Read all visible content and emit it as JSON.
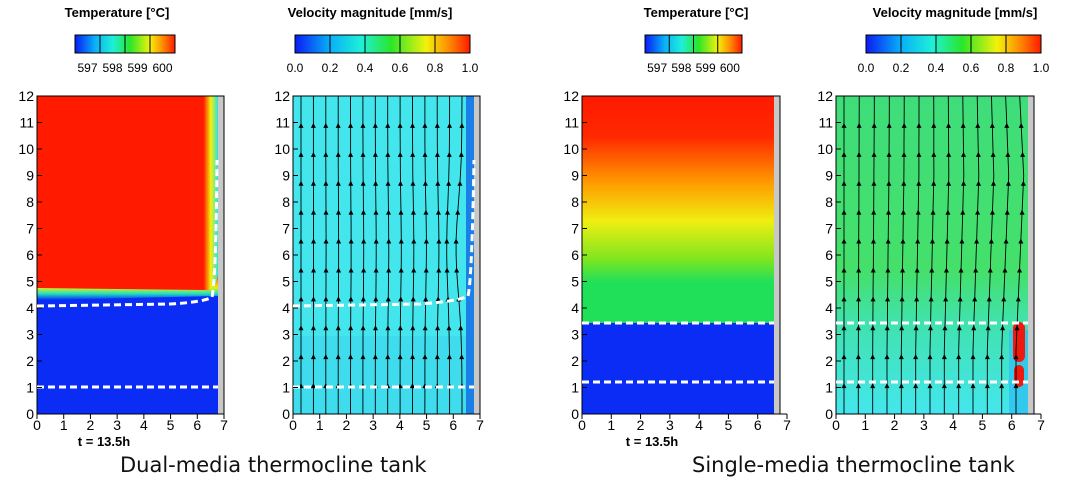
{
  "captions": {
    "dual": "Dual-media thermocline tank",
    "single": "Single-media thermocline tank"
  },
  "panels": [
    {
      "id": "dual-temperature",
      "colorbar_title": "Temperature [°C]",
      "colorbar_ticks": [
        "597",
        "598",
        "599",
        "600"
      ],
      "time_label": "t = 13.5h",
      "x_ticks": [
        "0",
        "1",
        "2",
        "3",
        "4",
        "5",
        "6",
        "7"
      ],
      "y_ticks": [
        "0",
        "1",
        "2",
        "3",
        "4",
        "5",
        "6",
        "7",
        "8",
        "9",
        "10",
        "11",
        "12"
      ],
      "xlim": [
        0,
        7
      ],
      "ylim": [
        0,
        12
      ],
      "dashed_lines_y": [
        1.0,
        4.0
      ]
    },
    {
      "id": "dual-velocity",
      "colorbar_title": "Velocity magnitude [mm/s]",
      "colorbar_ticks": [
        "0.0",
        "0.2",
        "0.4",
        "0.6",
        "0.8",
        "1.0"
      ],
      "x_ticks": [
        "0",
        "1",
        "2",
        "3",
        "4",
        "5",
        "6",
        "7"
      ],
      "y_ticks": [
        "0",
        "1",
        "2",
        "3",
        "4",
        "5",
        "6",
        "7",
        "8",
        "9",
        "10",
        "11",
        "12"
      ],
      "xlim": [
        0,
        7
      ],
      "ylim": [
        0,
        12
      ],
      "dashed_lines_y": [
        1.0,
        4.0
      ]
    },
    {
      "id": "single-temperature",
      "colorbar_title": "Temperature [°C]",
      "colorbar_ticks": [
        "597",
        "598",
        "599",
        "600"
      ],
      "time_label": "t = 13.5h",
      "x_ticks": [
        "0",
        "1",
        "2",
        "3",
        "4",
        "5",
        "6",
        "7"
      ],
      "y_ticks": [
        "0",
        "1",
        "2",
        "3",
        "4",
        "5",
        "6",
        "7",
        "8",
        "9",
        "10",
        "11",
        "12"
      ],
      "xlim": [
        0,
        7
      ],
      "ylim": [
        0,
        12
      ],
      "dashed_lines_y": [
        1.1,
        3.35
      ]
    },
    {
      "id": "single-velocity",
      "colorbar_title": "Velocity magnitude [mm/s]",
      "colorbar_ticks": [
        "0.0",
        "0.2",
        "0.4",
        "0.6",
        "0.8",
        "1.0"
      ],
      "x_ticks": [
        "0",
        "1",
        "2",
        "3",
        "4",
        "5",
        "6",
        "7"
      ],
      "y_ticks": [
        "0",
        "1",
        "2",
        "3",
        "4",
        "5",
        "6",
        "7",
        "8",
        "9",
        "10",
        "11",
        "12"
      ],
      "xlim": [
        0,
        7
      ],
      "ylim": [
        0,
        12
      ],
      "dashed_lines_y": [
        1.1,
        3.35
      ]
    }
  ],
  "colors": {
    "hot": "#ff1a00",
    "cold": "#0a2cf5",
    "velocity_base": "#44e6ee",
    "velocity_green": "#45e06a",
    "wall": "#c8c8c8"
  }
}
